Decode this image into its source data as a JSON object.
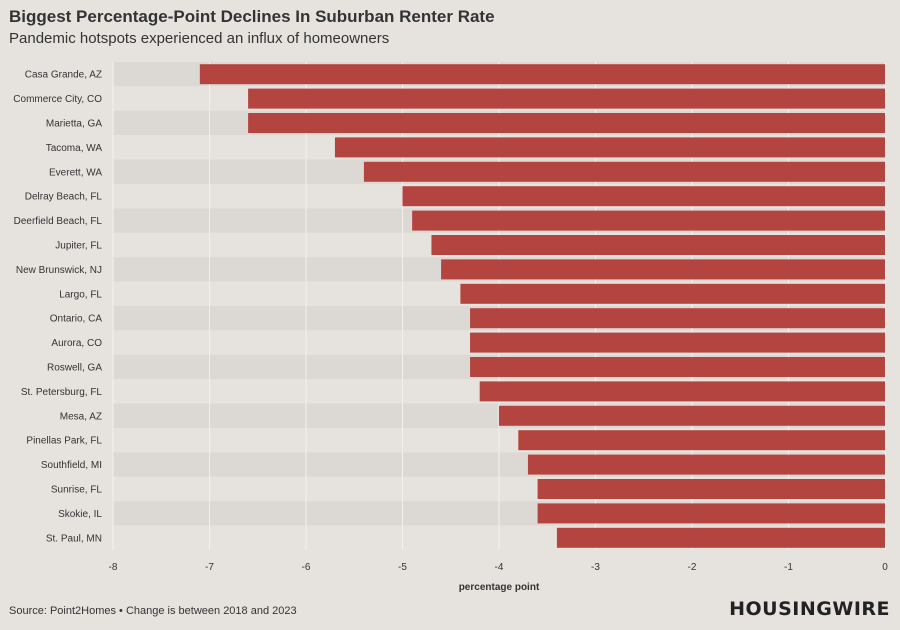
{
  "header": {
    "title": "Biggest Percentage-Point Declines In Suburban Renter Rate",
    "subtitle": "Pandemic hotspots experienced an influx of homeowners"
  },
  "footer": {
    "source": "Source: Point2Homes • Change is between 2018 and 2023",
    "logo": "HOUSINGWIRE"
  },
  "colors": {
    "bar": "#b3443f",
    "band_dark": "#dcd9d5",
    "band_light": "#e6e3df",
    "grid": "#f2f0ed"
  },
  "chart_data": {
    "type": "bar",
    "orientation": "horizontal",
    "title": "Biggest Percentage-Point Declines In Suburban Renter Rate",
    "subtitle": "Pandemic hotspots experienced an influx of homeowners",
    "xlabel": "percentage point",
    "ylabel": "",
    "xlim": [
      -8,
      0
    ],
    "xticks": [
      -8,
      -7,
      -6,
      -5,
      -4,
      -3,
      -2,
      -1,
      0
    ],
    "categories": [
      "Casa Grande, AZ",
      "Commerce City, CO",
      "Marietta, GA",
      "Tacoma, WA",
      "Everett, WA",
      "Delray Beach, FL",
      "Deerfield Beach, FL",
      "Jupiter, FL",
      "New Brunswick, NJ",
      "Largo, FL",
      "Ontario, CA",
      "Aurora, CO",
      "Roswell, GA",
      "St. Petersburg, FL",
      "Mesa, AZ",
      "Pinellas Park, FL",
      "Southfield, MI",
      "Sunrise, FL",
      "Skokie, IL",
      "St. Paul, MN"
    ],
    "values": [
      -7.1,
      -6.6,
      -6.6,
      -5.7,
      -5.4,
      -5.0,
      -4.9,
      -4.7,
      -4.6,
      -4.4,
      -4.3,
      -4.3,
      -4.3,
      -4.2,
      -4.0,
      -3.8,
      -3.7,
      -3.6,
      -3.6,
      -3.4
    ]
  }
}
